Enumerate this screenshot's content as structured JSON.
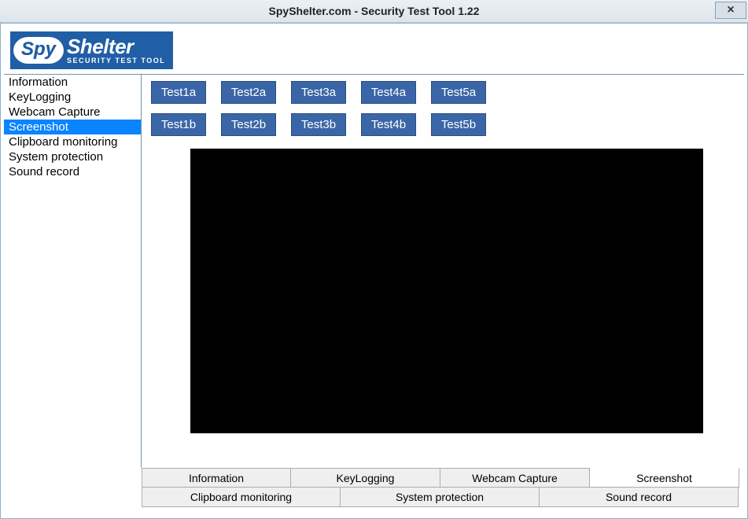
{
  "window": {
    "title": "SpyShelter.com - Security Test Tool 1.22",
    "close_glyph": "×"
  },
  "logo": {
    "spy": "Spy",
    "shelter": "Shelter",
    "sub": "SECURITY TEST TOOL"
  },
  "colors": {
    "brand_blue": "#205ea6",
    "button_blue": "#3a66a7",
    "selection_blue": "#0a84ff",
    "panel_border": "#7793ab",
    "capture_bg": "#000000",
    "white": "#ffffff",
    "tab_bg": "#efefef",
    "tab_border": "#acacac"
  },
  "sidebar": {
    "items": [
      {
        "label": "Information",
        "selected": false
      },
      {
        "label": "KeyLogging",
        "selected": false
      },
      {
        "label": "Webcam Capture",
        "selected": false
      },
      {
        "label": "Screenshot",
        "selected": true
      },
      {
        "label": "Clipboard monitoring",
        "selected": false
      },
      {
        "label": "System protection",
        "selected": false
      },
      {
        "label": "Sound record",
        "selected": false
      }
    ]
  },
  "tests": {
    "row1": [
      "Test1a",
      "Test2a",
      "Test3a",
      "Test4a",
      "Test5a"
    ],
    "row2": [
      "Test1b",
      "Test2b",
      "Test3b",
      "Test4b",
      "Test5b"
    ]
  },
  "capture": {
    "background": "#000000"
  },
  "bottom_tabs": {
    "row1": [
      {
        "label": "Information",
        "active": false
      },
      {
        "label": "KeyLogging",
        "active": false
      },
      {
        "label": "Webcam Capture",
        "active": false
      },
      {
        "label": "Screenshot",
        "active": true
      }
    ],
    "row2": [
      {
        "label": "Clipboard monitoring",
        "active": false
      },
      {
        "label": "System protection",
        "active": false
      },
      {
        "label": "Sound record",
        "active": false
      }
    ]
  }
}
